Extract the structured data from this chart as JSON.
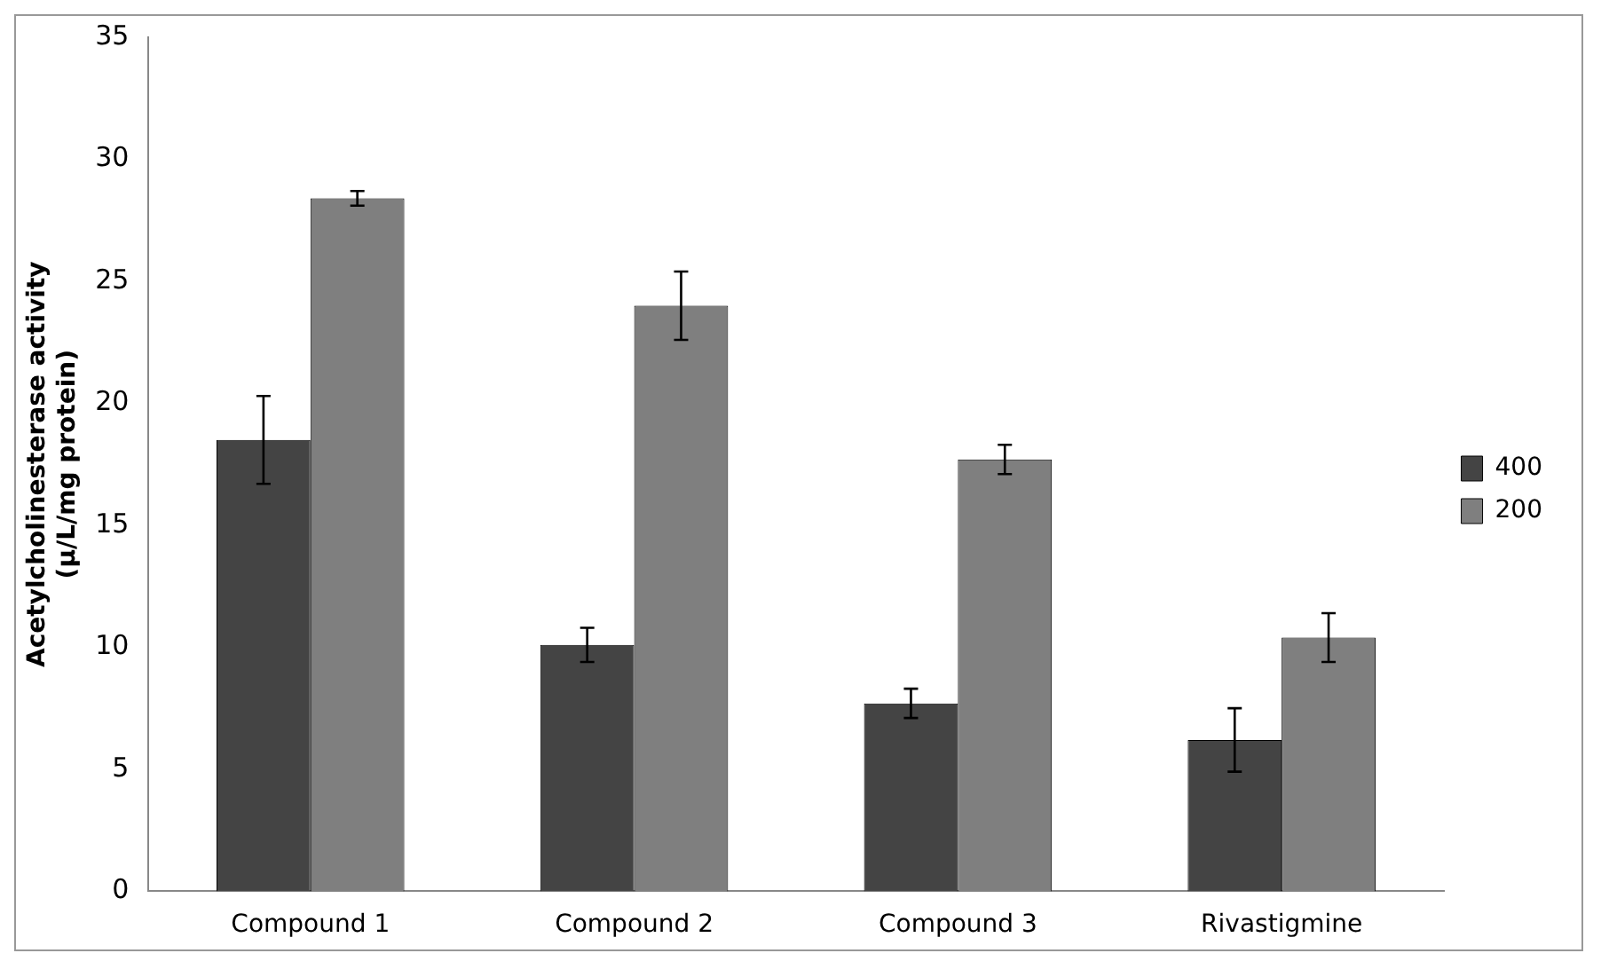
{
  "chart_data": {
    "type": "bar",
    "ylabel": "Acetylcholinesterase activity\n(µ/L/mg protein)",
    "categories": [
      "Compound 1",
      "Compound 2",
      "Compound 3",
      "Rivastigmine"
    ],
    "series": [
      {
        "name": "400",
        "color": "#444444",
        "values": [
          18.5,
          10.1,
          7.7,
          6.2
        ],
        "errors": [
          1.8,
          0.7,
          0.6,
          1.3
        ]
      },
      {
        "name": "200",
        "color": "#7f7f7f",
        "values": [
          28.4,
          24.0,
          17.7,
          10.4
        ],
        "errors": [
          0.3,
          1.4,
          0.6,
          1.0
        ]
      }
    ],
    "ylim": [
      0,
      35
    ],
    "yticks": [
      0,
      5,
      10,
      15,
      20,
      25,
      30,
      35
    ],
    "grid": false,
    "legend": "right"
  }
}
